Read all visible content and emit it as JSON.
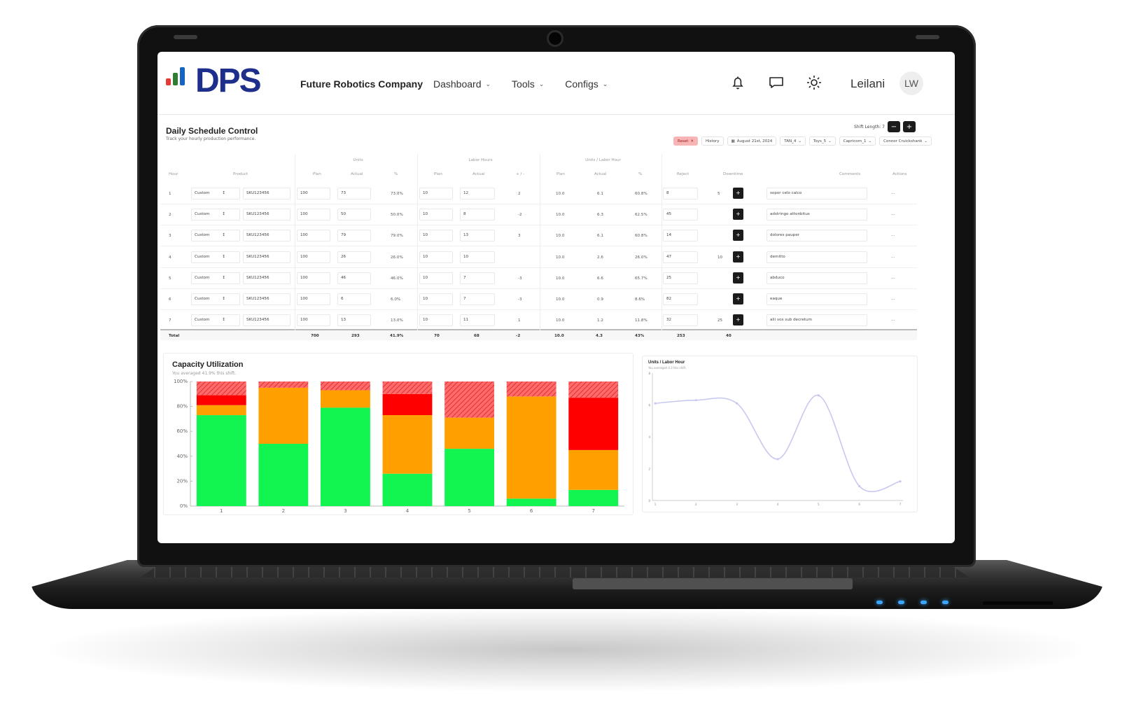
{
  "app": {
    "logo_text": "DPS",
    "company": "Future Robotics Company",
    "nav": [
      {
        "label": "Dashboard"
      },
      {
        "label": "Tools"
      },
      {
        "label": "Configs"
      }
    ],
    "user_name": "Leilani",
    "avatar_initials": "LW",
    "icons": [
      "bell-icon",
      "chat-icon",
      "sun-icon"
    ],
    "logo_bar_colors": [
      "#e53935",
      "#2e7d32",
      "#1565c0",
      "#1d2f8a"
    ]
  },
  "page": {
    "title": "Daily Schedule Control",
    "subtitle": "Track your hourly production performance.",
    "shift_length_label": "Shift Length: 7",
    "minus_label": "−",
    "plus_label": "+"
  },
  "filters": [
    {
      "label": "Reset",
      "icon": "close-icon"
    },
    {
      "label": "History"
    },
    {
      "label": "August 21st, 2024",
      "icon": "calendar-icon"
    },
    {
      "label": "TAN_4"
    },
    {
      "label": "Toys_5"
    },
    {
      "label": "Capricorn_1"
    },
    {
      "label": "Connor Cruickshank"
    }
  ],
  "table": {
    "groups": [
      "Units",
      "Labor Hours",
      "Units / Labor Hour"
    ],
    "columns": [
      "Hour",
      "Product",
      "Plan",
      "Actual",
      "%",
      "Plan",
      "Actual",
      "+ / -",
      "Plan",
      "Actual",
      "%",
      "Reject",
      "Downtime",
      "Comments",
      "Actions"
    ],
    "rows": [
      {
        "hour": "1",
        "mode": "Custom",
        "sku": "SKU123456",
        "u_plan": "100",
        "u_actual": "73",
        "u_pct": "73.0%",
        "l_plan": "10",
        "l_actual": "12",
        "l_diff": "2",
        "ulh_plan": "10.0",
        "ulh_actual": "6.1",
        "ulh_pct": "60.8%",
        "reject": "8",
        "downtime": "5",
        "comment": "sopor celo calco",
        "actions": "···"
      },
      {
        "hour": "2",
        "mode": "Custom",
        "sku": "SKU123456",
        "u_plan": "100",
        "u_actual": "50",
        "u_pct": "50.0%",
        "l_plan": "10",
        "l_actual": "8",
        "l_diff": "-2",
        "ulh_plan": "10.0",
        "ulh_actual": "6.3",
        "ulh_pct": "62.5%",
        "reject": "45",
        "downtime": "",
        "comment": "adstringo attonbitus",
        "actions": "···"
      },
      {
        "hour": "3",
        "mode": "Custom",
        "sku": "SKU123456",
        "u_plan": "100",
        "u_actual": "79",
        "u_pct": "79.0%",
        "l_plan": "10",
        "l_actual": "13",
        "l_diff": "3",
        "ulh_plan": "10.0",
        "ulh_actual": "6.1",
        "ulh_pct": "60.8%",
        "reject": "14",
        "downtime": "",
        "comment": "dolores pauper",
        "actions": "···"
      },
      {
        "hour": "4",
        "mode": "Custom",
        "sku": "SKU123456",
        "u_plan": "100",
        "u_actual": "26",
        "u_pct": "26.0%",
        "l_plan": "10",
        "l_actual": "10",
        "l_diff": "",
        "ulh_plan": "10.0",
        "ulh_actual": "2.6",
        "ulh_pct": "26.0%",
        "reject": "47",
        "downtime": "10",
        "comment": "demitto",
        "actions": "···"
      },
      {
        "hour": "5",
        "mode": "Custom",
        "sku": "SKU123456",
        "u_plan": "100",
        "u_actual": "46",
        "u_pct": "46.0%",
        "l_plan": "10",
        "l_actual": "7",
        "l_diff": "-3",
        "ulh_plan": "10.0",
        "ulh_actual": "6.6",
        "ulh_pct": "65.7%",
        "reject": "25",
        "downtime": "",
        "comment": "abduco",
        "actions": "···"
      },
      {
        "hour": "6",
        "mode": "Custom",
        "sku": "SKU123456",
        "u_plan": "100",
        "u_actual": "6",
        "u_pct": "6.0%",
        "l_plan": "10",
        "l_actual": "7",
        "l_diff": "-3",
        "ulh_plan": "10.0",
        "ulh_actual": "0.9",
        "ulh_pct": "8.6%",
        "reject": "82",
        "downtime": "",
        "comment": "eaque",
        "actions": "···"
      },
      {
        "hour": "7",
        "mode": "Custom",
        "sku": "SKU123456",
        "u_plan": "100",
        "u_actual": "13",
        "u_pct": "13.0%",
        "l_plan": "10",
        "l_actual": "11",
        "l_diff": "1",
        "ulh_plan": "10.0",
        "ulh_actual": "1.2",
        "ulh_pct": "11.8%",
        "reject": "32",
        "downtime": "25",
        "comment": "alii vos sub decretum",
        "actions": "···"
      }
    ],
    "total": {
      "label": "Total",
      "u_plan": "700",
      "u_actual": "293",
      "u_pct": "41.9%",
      "l_plan": "70",
      "l_actual": "68",
      "l_diff": "-2",
      "ulh_plan": "10.0",
      "ulh_actual": "4.3",
      "ulh_pct": "43%",
      "reject": "253",
      "downtime": "40"
    }
  },
  "chart_data": [
    {
      "type": "bar",
      "title": "Capacity Utilization",
      "subtitle": "You averaged 41.9% this shift.",
      "categories": [
        "1",
        "2",
        "3",
        "4",
        "5",
        "6",
        "7"
      ],
      "stacked": true,
      "ylim": [
        0,
        100
      ],
      "yticks": [
        "0%",
        "20%",
        "40%",
        "60%",
        "80%",
        "100%"
      ],
      "series": [
        {
          "values": [
            73,
            50,
            79,
            26,
            46,
            6,
            13
          ],
          "color": "#12f550"
        },
        {
          "values": [
            8,
            45,
            14,
            47,
            25,
            82,
            32
          ],
          "color": "#ff9f00"
        },
        {
          "values": [
            8,
            0,
            0,
            17,
            0,
            0,
            42
          ],
          "color": "#ff0000"
        },
        {
          "values": [
            11,
            5,
            7,
            10,
            29,
            12,
            13
          ],
          "color": "#ff5a5a",
          "pattern": "hatched"
        }
      ]
    },
    {
      "type": "line",
      "title": "Units / Labor Hour",
      "subtitle": "You averaged 4.3 this shift.",
      "x": [
        "1",
        "2",
        "3",
        "4",
        "5",
        "6",
        "7"
      ],
      "values": [
        6.1,
        6.3,
        6.1,
        2.6,
        6.6,
        0.9,
        1.2
      ],
      "yticks": [
        "0",
        "2",
        "4",
        "6",
        "8"
      ],
      "ylim": [
        0,
        8
      ],
      "color": "#c8c8f0",
      "smooth": true
    }
  ]
}
